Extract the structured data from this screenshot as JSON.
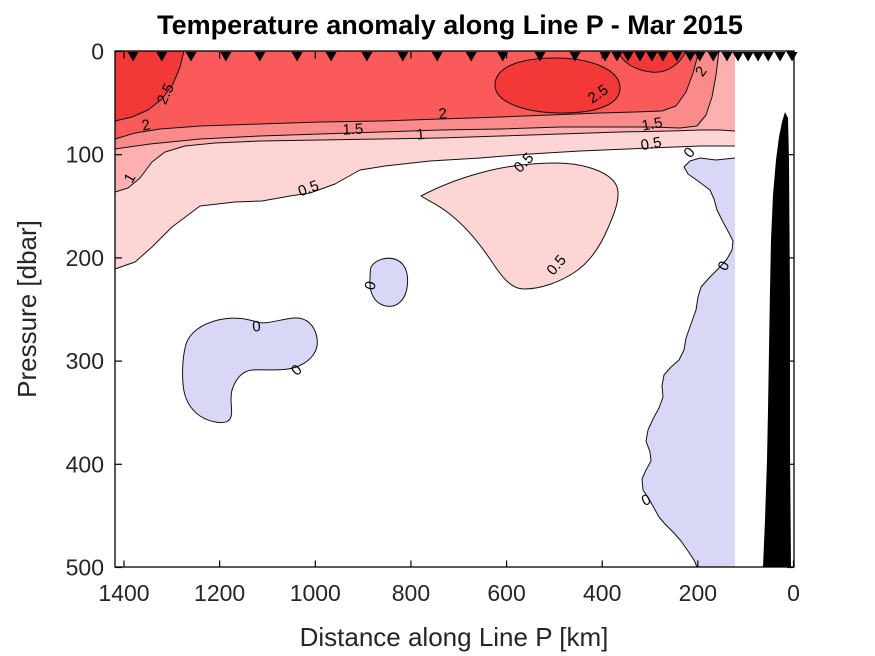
{
  "chart_data": {
    "type": "filled_contour",
    "title": "Temperature anomaly along Line P - Mar 2015",
    "xlabel": "Distance along Line P [km]",
    "ylabel": "Pressure [dbar]",
    "x_axis": {
      "min": 0,
      "max": 1420,
      "reversed": true,
      "ticks": [
        1400,
        1200,
        1000,
        800,
        600,
        400,
        200,
        0
      ]
    },
    "y_axis": {
      "min": 0,
      "max": 500,
      "increases_downward": true,
      "ticks": [
        0,
        100,
        200,
        300,
        400,
        500
      ]
    },
    "contour_levels": [
      0,
      0.5,
      1,
      1.5,
      2,
      2.5
    ],
    "bands": [
      {
        "range": "> 2.5",
        "color": "#f33838"
      },
      {
        "range": "2 to 2.5",
        "color": "#fa5a5a"
      },
      {
        "range": "1.5 to 2",
        "color": "#fb8b8b"
      },
      {
        "range": "1 to 1.5",
        "color": "#fcb0b0"
      },
      {
        "range": "0.5 to 1",
        "color": "#fdd5d5"
      },
      {
        "range": "0 to 0.5",
        "color": "#ffffff"
      },
      {
        "range": "< 0",
        "color": "#d8d8f6"
      }
    ],
    "seafloor_color": "#000000",
    "station_markers_km": [
      1381,
      1321,
      1260,
      1187,
      1116,
      1038,
      967,
      892,
      817,
      745,
      674,
      608,
      530,
      457,
      394,
      369,
      346,
      321,
      296,
      273,
      244,
      216,
      196,
      168,
      139,
      116,
      95,
      74,
      53,
      28,
      3
    ],
    "contour_labels": [
      {
        "value": 2.5,
        "km": 1304,
        "dbar": 43,
        "rotation": -65
      },
      {
        "value": 2.5,
        "km": 403,
        "dbar": 45,
        "rotation": -35
      },
      {
        "value": 2,
        "km": 1352,
        "dbar": 76,
        "rotation": -12
      },
      {
        "value": 2,
        "km": 733,
        "dbar": 65,
        "rotation": -4
      },
      {
        "value": 2,
        "km": 185,
        "dbar": 22,
        "rotation": -55
      },
      {
        "value": 1.5,
        "km": 921,
        "dbar": 80,
        "rotation": -3
      },
      {
        "value": 1.5,
        "km": 294,
        "dbar": 75,
        "rotation": -10
      },
      {
        "value": 1,
        "km": 1379,
        "dbar": 125,
        "rotation": -60
      },
      {
        "value": 1,
        "km": 779,
        "dbar": 85,
        "rotation": -5
      },
      {
        "value": 0.5,
        "km": 1011,
        "dbar": 137,
        "rotation": -20
      },
      {
        "value": 0.5,
        "km": 557,
        "dbar": 111,
        "rotation": -45
      },
      {
        "value": 0.5,
        "km": 296,
        "dbar": 94,
        "rotation": -10
      },
      {
        "value": 0.5,
        "km": 488,
        "dbar": 210,
        "rotation": -50
      },
      {
        "value": 0,
        "km": 875,
        "dbar": 228,
        "rotation": -75
      },
      {
        "value": 0,
        "km": 1122,
        "dbar": 271,
        "rotation": -5
      },
      {
        "value": 0,
        "km": 1032,
        "dbar": 312,
        "rotation": -45
      },
      {
        "value": 0,
        "km": 210,
        "dbar": 101,
        "rotation": -50
      },
      {
        "value": 0,
        "km": 137,
        "dbar": 210,
        "rotation": -62
      },
      {
        "value": 0,
        "km": 304,
        "dbar": 439,
        "rotation": -25
      }
    ]
  }
}
